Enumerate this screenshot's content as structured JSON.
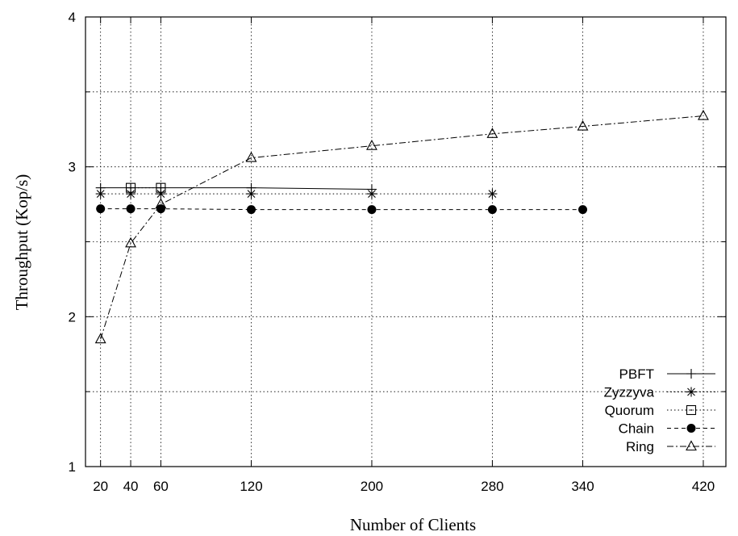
{
  "chart_data": {
    "type": "line",
    "xlabel": "Number of Clients",
    "ylabel": "Throughput (Kop/s)",
    "x_ticks": [
      20,
      40,
      60,
      120,
      200,
      280,
      340,
      420
    ],
    "y_ticks": [
      1,
      2,
      3,
      4
    ],
    "xlim": [
      10,
      435
    ],
    "ylim": [
      1,
      4
    ],
    "grid": true,
    "legend_position": "bottom-right",
    "series": [
      {
        "name": "PBFT",
        "marker": "plus",
        "line": "solid",
        "x": [
          20,
          40,
          60,
          120,
          200
        ],
        "y": [
          2.86,
          2.86,
          2.86,
          2.86,
          2.85
        ]
      },
      {
        "name": "Zyzzyva",
        "marker": "star",
        "line": "dotted",
        "x": [
          20,
          40,
          60,
          120,
          200,
          280
        ],
        "y": [
          2.82,
          2.82,
          2.82,
          2.82,
          2.82,
          2.82
        ]
      },
      {
        "name": "Quorum",
        "marker": "square",
        "line": "dotted",
        "x": [
          40,
          60
        ],
        "y": [
          2.86,
          2.86
        ]
      },
      {
        "name": "Chain",
        "marker": "circle",
        "line": "dashed",
        "x": [
          20,
          40,
          60,
          120,
          200,
          280,
          340
        ],
        "y": [
          2.72,
          2.72,
          2.72,
          2.715,
          2.715,
          2.715,
          2.715
        ]
      },
      {
        "name": "Ring",
        "marker": "triangle",
        "line": "dashdot",
        "x": [
          20,
          40,
          60,
          120,
          200,
          280,
          340,
          420
        ],
        "y": [
          1.85,
          2.49,
          2.75,
          3.06,
          3.14,
          3.22,
          3.27,
          3.34
        ]
      }
    ]
  }
}
